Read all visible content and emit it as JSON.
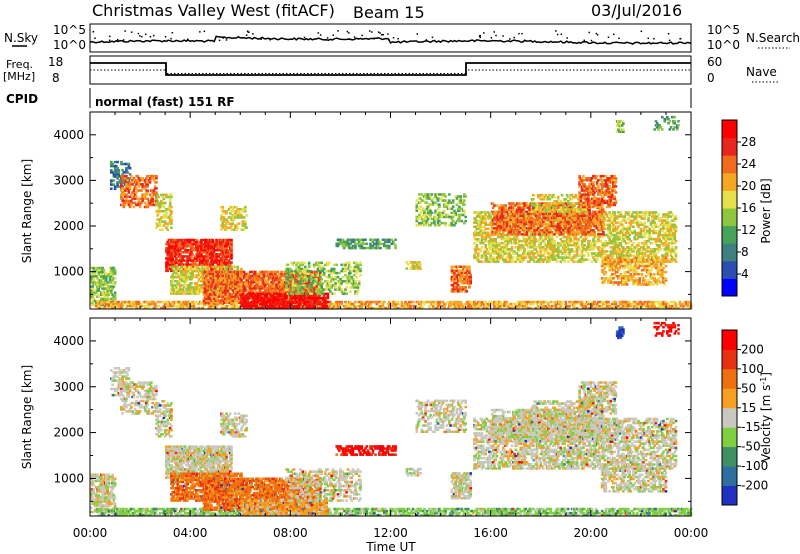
{
  "header": {
    "station": "Christmas Valley West (fitACF)",
    "beam": "Beam 15",
    "date": "03/Jul/2016"
  },
  "top_panel": {
    "nsky_label": "N.Sky",
    "nsky_ticks": [
      "10^5",
      "10^0"
    ],
    "nsearch_label": "N.Search",
    "nsearch_ticks": [
      "10^5",
      "10^0"
    ],
    "freq_label": "Freq.",
    "freq_unit": "[MHz]",
    "freq_ticks": [
      "18",
      "8"
    ],
    "nave_label": "Nave",
    "nave_ticks": [
      "60",
      "0"
    ],
    "cpid_label": "CPID",
    "cpid_text": "normal (fast) 151 RF"
  },
  "chart_data": [
    {
      "type": "heatmap",
      "name": "power",
      "xlabel": "Time UT",
      "ylabel": "Slant Range [km]",
      "xlim": [
        0,
        24
      ],
      "ylim": [
        180,
        4500
      ],
      "yticks": [
        1000,
        2000,
        3000,
        4000
      ],
      "xticks": [
        "00:00",
        "04:00",
        "08:00",
        "12:00",
        "16:00",
        "20:00",
        "00:00"
      ],
      "colorbar": {
        "label": "Power [dB]",
        "ticks": [
          "28",
          "24",
          "20",
          "16",
          "12",
          "8",
          "4"
        ],
        "colors": [
          "#0000ff",
          "#2a4fb0",
          "#3f7f7f",
          "#47a25a",
          "#8ec63f",
          "#e8e04a",
          "#f5a623",
          "#f26a1e",
          "#e8261d",
          "#ff0000"
        ]
      }
    },
    {
      "type": "heatmap",
      "name": "velocity",
      "xlabel": "Time UT",
      "ylabel": "Slant Range [km]",
      "xlim": [
        0,
        24
      ],
      "ylim": [
        180,
        4500
      ],
      "yticks": [
        1000,
        2000,
        3000,
        4000
      ],
      "xticks": [
        "00:00",
        "04:00",
        "08:00",
        "12:00",
        "16:00",
        "20:00",
        "00:00"
      ],
      "colorbar": {
        "label": "Velocity [m s^-1]",
        "ticks": [
          "200",
          "100",
          "50",
          "15",
          "-15",
          "-50",
          "-100",
          "-200"
        ],
        "colors": [
          "#2030c0",
          "#2f6fa0",
          "#3f9060",
          "#7fd040",
          "#c8c8c0",
          "#f5a020",
          "#f07010",
          "#e83010",
          "#ff0000"
        ]
      }
    }
  ]
}
